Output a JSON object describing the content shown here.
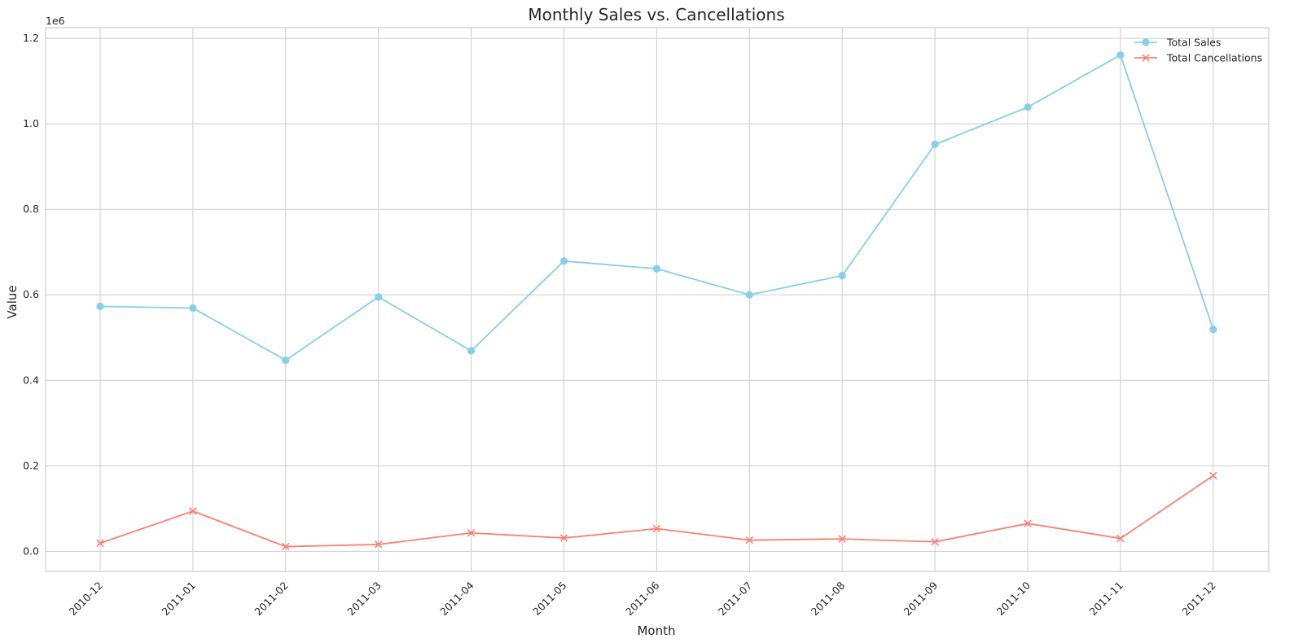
{
  "chart_data": {
    "type": "line",
    "title": "Monthly Sales vs. Cancellations",
    "xlabel": "Month",
    "ylabel": "Value",
    "y_offset_label": "1e6",
    "categories": [
      "2010-12",
      "2011-01",
      "2011-02",
      "2011-03",
      "2011-04",
      "2011-05",
      "2011-06",
      "2011-07",
      "2011-08",
      "2011-09",
      "2011-10",
      "2011-11",
      "2011-12"
    ],
    "ylim": [
      -0.047,
      1.225
    ],
    "y_ticks": [
      0.0,
      0.2,
      0.4,
      0.6,
      0.8,
      1.0,
      1.2
    ],
    "y_tick_labels": [
      "0.0",
      "0.2",
      "0.4",
      "0.6",
      "0.8",
      "1.0",
      "1.2"
    ],
    "grid": true,
    "legend_position": "top-right",
    "series": [
      {
        "name": "Total Sales",
        "marker": "circle",
        "color": "#87ceeb",
        "values": [
          0.573,
          0.569,
          0.447,
          0.595,
          0.469,
          0.679,
          0.661,
          0.6,
          0.645,
          0.952,
          1.039,
          1.161,
          0.519
        ]
      },
      {
        "name": "Total Cancellations",
        "marker": "x",
        "color": "#fa8072",
        "values": [
          0.019,
          0.094,
          0.011,
          0.016,
          0.043,
          0.031,
          0.053,
          0.026,
          0.029,
          0.022,
          0.065,
          0.03,
          0.177
        ]
      }
    ]
  }
}
